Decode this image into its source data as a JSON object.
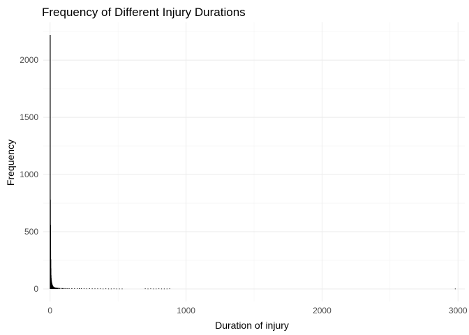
{
  "chart_data": {
    "type": "bar",
    "title": "Frequency of Different Injury Durations",
    "xlabel": "Duration of injury",
    "ylabel": "Frequency",
    "xlim": [
      -50,
      3050
    ],
    "ylim": [
      -110,
      2330
    ],
    "x_ticks": [
      0,
      1000,
      2000,
      3000
    ],
    "y_ticks": [
      0,
      500,
      1000,
      1500,
      2000
    ],
    "grid": true,
    "bar_color": "#000000",
    "series": [
      {
        "x": [
          1,
          2,
          3,
          4,
          5,
          6,
          7,
          8,
          9,
          10,
          11,
          12,
          13,
          14,
          15,
          16,
          17,
          18,
          19,
          20,
          22,
          24,
          26,
          28,
          30,
          33,
          36,
          40,
          45,
          50,
          55,
          60,
          70,
          80,
          90,
          100,
          110,
          125,
          140,
          160,
          180,
          200,
          215,
          230,
          250,
          270,
          290,
          310,
          330,
          350,
          370,
          390,
          410,
          430,
          450,
          470,
          490,
          510,
          530,
          700,
          720,
          740,
          760,
          780,
          800,
          820,
          840,
          860,
          880,
          2980
        ],
        "values": [
          2220,
          780,
          560,
          340,
          260,
          180,
          120,
          95,
          80,
          70,
          60,
          55,
          50,
          45,
          40,
          35,
          32,
          30,
          28,
          25,
          22,
          20,
          18,
          16,
          15,
          14,
          12,
          11,
          10,
          10,
          9,
          9,
          8,
          8,
          7,
          7,
          7,
          6,
          6,
          6,
          5,
          5,
          6,
          5,
          5,
          4,
          5,
          4,
          4,
          4,
          4,
          3,
          4,
          3,
          3,
          4,
          3,
          3,
          3,
          4,
          3,
          4,
          3,
          3,
          4,
          3,
          3,
          3,
          4,
          3
        ]
      }
    ]
  }
}
